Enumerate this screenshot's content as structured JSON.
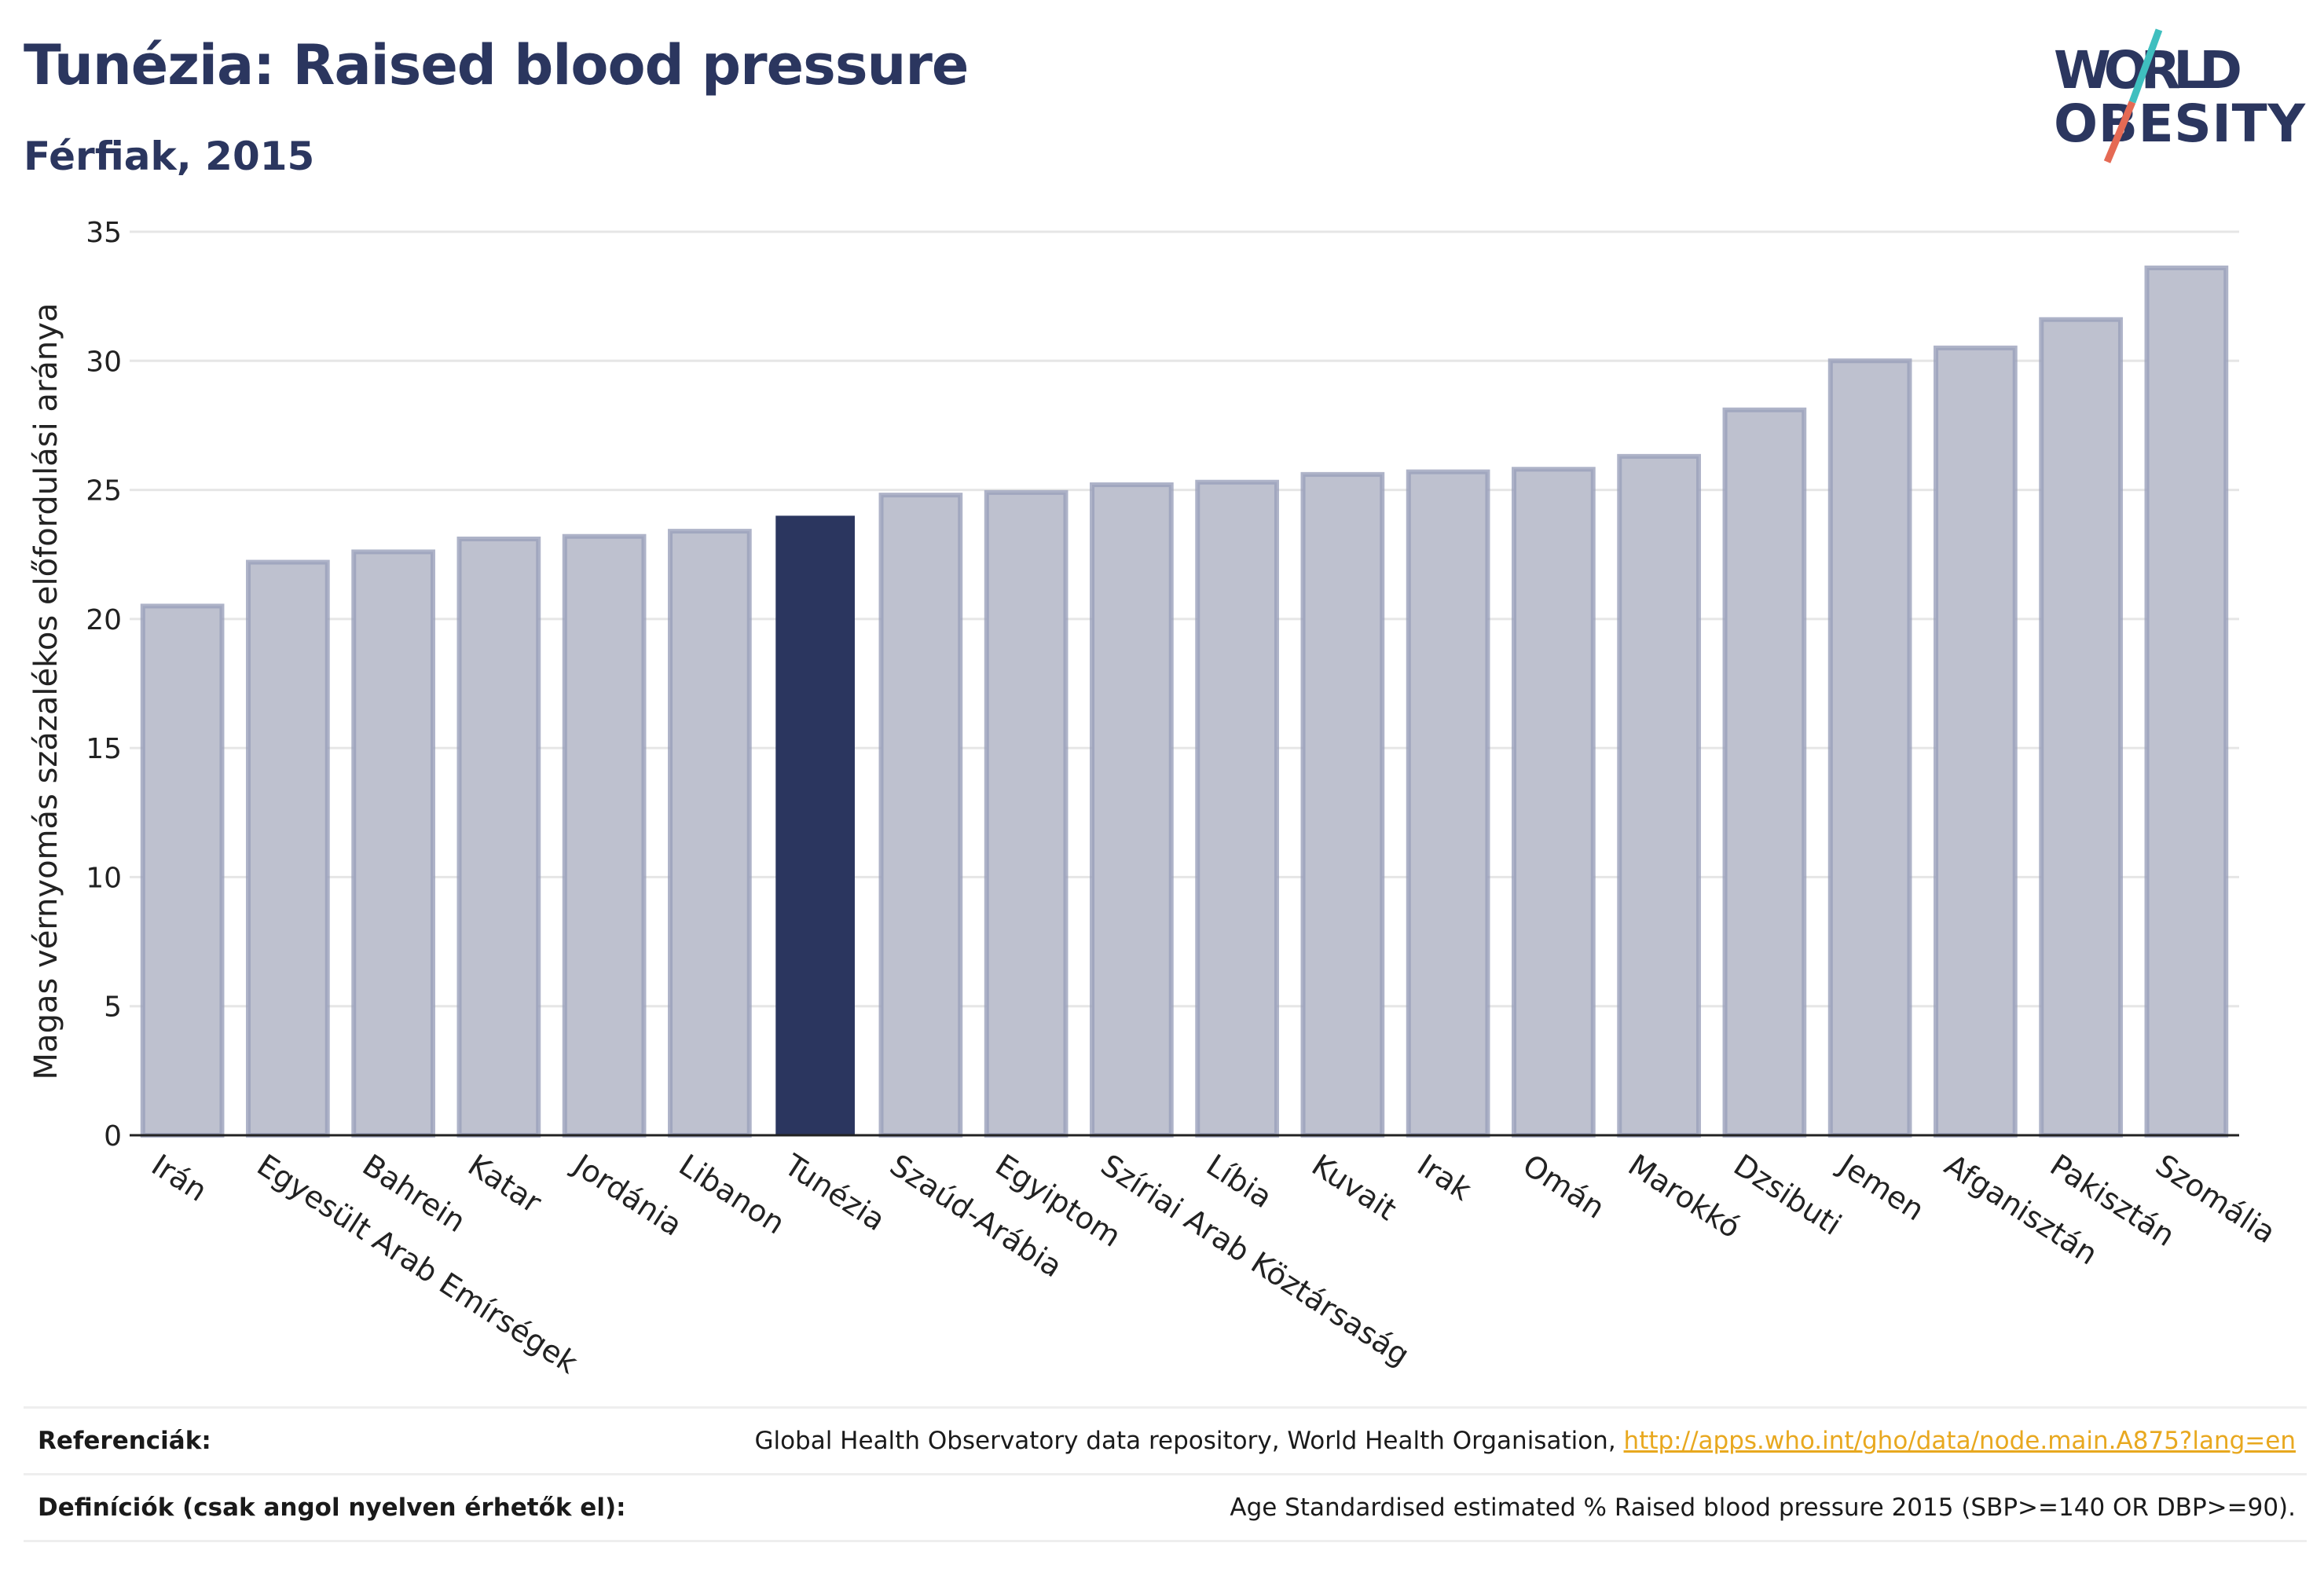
{
  "header": {
    "title": "Tunézia: Raised blood pressure",
    "subtitle": "Férfiak, 2015"
  },
  "logo": {
    "line1": "WORLD",
    "line2": "OBESITY"
  },
  "chart_data": {
    "type": "bar",
    "ylabel": "Magas vérnyomás százalékos előfordulási aránya",
    "ylim": [
      0,
      35
    ],
    "yticks": [
      0,
      5,
      10,
      15,
      20,
      25,
      30,
      35
    ],
    "grid": true,
    "highlight": "Tunézia",
    "colors": {
      "highlight": "#2b365f",
      "default": "#bec1cf",
      "default_border": "#9aa0ba",
      "grid": "#e6e6e6"
    },
    "categories": [
      "Irán",
      "Egyesült Arab Emírségek",
      "Bahrein",
      "Katar",
      "Jordánia",
      "Libanon",
      "Tunézia",
      "Szaúd-Arábia",
      "Egyiptom",
      "Szíriai Arab Köztársaság",
      "Líbia",
      "Kuvait",
      "Irak",
      "Omán",
      "Marokkó",
      "Dzsibuti",
      "Jemen",
      "Afganisztán",
      "Pakisztán",
      "Szomália"
    ],
    "values": [
      20.5,
      22.2,
      22.6,
      23.1,
      23.2,
      23.4,
      24.0,
      24.8,
      24.9,
      25.2,
      25.3,
      25.6,
      25.7,
      25.8,
      26.3,
      28.1,
      30.0,
      30.5,
      31.6,
      33.6
    ]
  },
  "footer": {
    "references_label": "Referenciák:",
    "references_text": "Global Health Observatory data repository, World Health Organisation, ",
    "references_link": "http://apps.who.int/gho/data/node.main.A875?lang=en",
    "definitions_label": "Definíciók (csak angol nyelven érhetők el):",
    "definitions_text": "Age Standardised estimated % Raised blood pressure 2015 (SBP>=140 OR DBP>=90)."
  }
}
